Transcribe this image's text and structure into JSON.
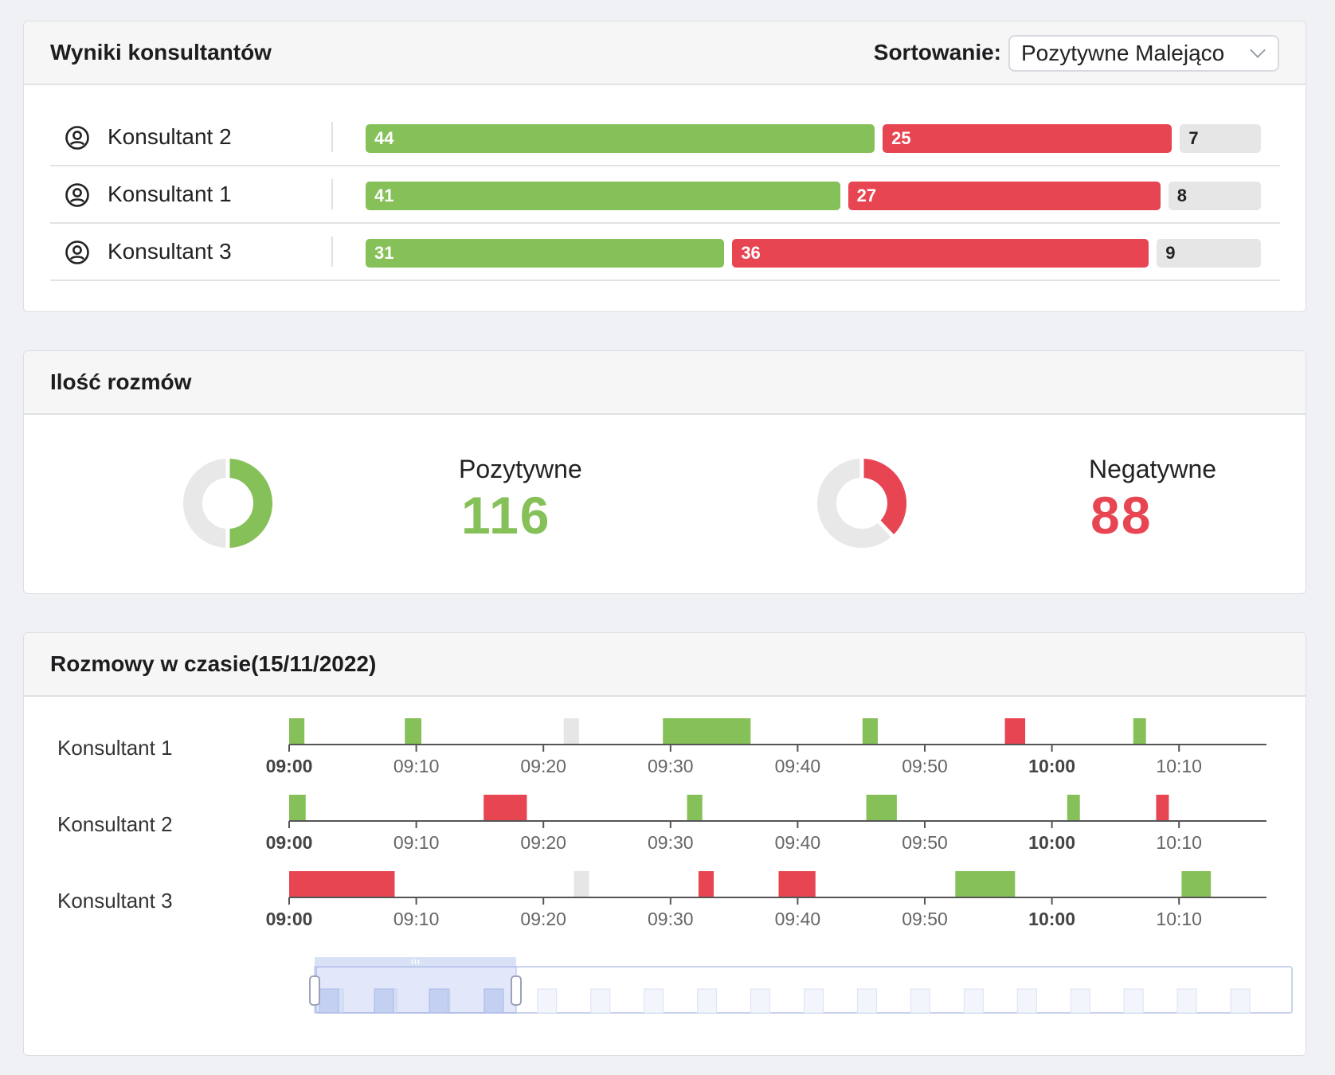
{
  "results": {
    "title": "Wyniki konsultantów",
    "sort_label": "Sortowanie:",
    "sort_value": "Pozytywne Malejąco",
    "rows": [
      {
        "name": "Konsultant 2",
        "positive": 44,
        "negative": 25,
        "neutral": 7
      },
      {
        "name": "Konsultant 1",
        "positive": 41,
        "negative": 27,
        "neutral": 8
      },
      {
        "name": "Konsultant 3",
        "positive": 31,
        "negative": 36,
        "neutral": 9
      }
    ]
  },
  "counts": {
    "title": "Ilość rozmów",
    "positive_label": "Pozytywne",
    "positive_value": "116",
    "negative_label": "Negatywne",
    "negative_value": "88",
    "positive_fraction": 0.5,
    "negative_fraction": 0.38
  },
  "timeline": {
    "title": "Rozmowy w czasie(15/11/2022)",
    "ticks": [
      "09:00",
      "09:10",
      "09:20",
      "09:30",
      "09:40",
      "09:50",
      "10:00",
      "10:10"
    ],
    "bold_ticks": [
      "09:00",
      "10:00"
    ],
    "consultants": [
      {
        "name": "Konsultant 1",
        "events": [
          {
            "start": 0.0,
            "end": 1.2,
            "type": "positive"
          },
          {
            "start": 9.1,
            "end": 10.4,
            "type": "positive"
          },
          {
            "start": 21.6,
            "end": 22.8,
            "type": "neutral"
          },
          {
            "start": 29.4,
            "end": 36.3,
            "type": "positive"
          },
          {
            "start": 45.1,
            "end": 46.3,
            "type": "positive"
          },
          {
            "start": 56.3,
            "end": 57.9,
            "type": "negative"
          },
          {
            "start": 66.4,
            "end": 67.4,
            "type": "positive"
          }
        ]
      },
      {
        "name": "Konsultant 2",
        "events": [
          {
            "start": 0.0,
            "end": 1.3,
            "type": "positive"
          },
          {
            "start": 15.3,
            "end": 18.7,
            "type": "negative"
          },
          {
            "start": 31.3,
            "end": 32.5,
            "type": "positive"
          },
          {
            "start": 45.4,
            "end": 47.8,
            "type": "positive"
          },
          {
            "start": 61.2,
            "end": 62.2,
            "type": "positive"
          },
          {
            "start": 68.2,
            "end": 69.2,
            "type": "negative"
          }
        ]
      },
      {
        "name": "Konsultant 3",
        "events": [
          {
            "start": 0.0,
            "end": 8.3,
            "type": "negative"
          },
          {
            "start": 22.4,
            "end": 23.6,
            "type": "neutral"
          },
          {
            "start": 32.2,
            "end": 33.4,
            "type": "negative"
          },
          {
            "start": 38.5,
            "end": 41.4,
            "type": "negative"
          },
          {
            "start": 52.4,
            "end": 57.1,
            "type": "positive"
          },
          {
            "start": 70.2,
            "end": 72.5,
            "type": "positive"
          }
        ]
      }
    ],
    "navigator": {
      "range_start": 0.0,
      "range_end": 0.2,
      "bars": 18
    }
  },
  "colors": {
    "positive": "#86c059",
    "negative": "#e84553",
    "neutral": "#e6e6e6",
    "track": "#e8e8e8"
  }
}
